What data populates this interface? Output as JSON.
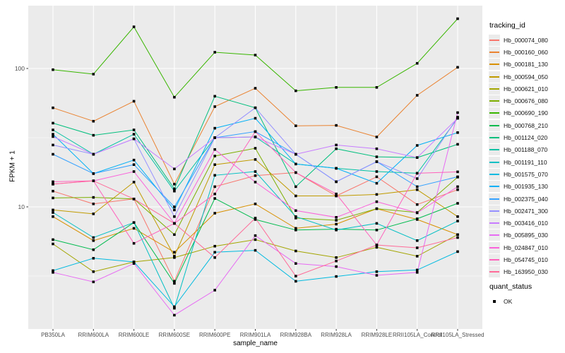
{
  "figure": {
    "ylabel": "FPKM + 1",
    "xlabel": "sample_name",
    "legend_title": "tracking_id",
    "legend2_title": "quant_status",
    "legend2_items": [
      {
        "label": "OK",
        "marker": "black-square"
      }
    ]
  },
  "chart_data": {
    "type": "line",
    "title": "",
    "xlabel": "sample_name",
    "ylabel": "FPKM + 1",
    "yscale": "log10",
    "grid": true,
    "legend_position": "right",
    "marker": "black-square",
    "yticks": [
      10,
      100
    ],
    "ytick_labels": [
      "10",
      "100"
    ],
    "minor_ticks": [
      3.162,
      31.62,
      316.2
    ],
    "ylim": [
      1.35,
      290
    ],
    "x_categories": [
      "PB350LA",
      "RRIM600LA",
      "RRIM600LE",
      "RRIM600SE",
      "RRIM600PE",
      "RRIM901LA",
      "RRIM928BA",
      "RRIM928LA",
      "RRIM928LE",
      "RRII105LA_Control",
      "RRII105LA_Stressed"
    ],
    "series": [
      {
        "name": "Hb_000074_080",
        "color": "#F8766D",
        "values": [
          13.0,
          10.5,
          11.4,
          2.9,
          14.0,
          16.8,
          17.7,
          12.0,
          16.5,
          10.4,
          13.3
        ]
      },
      {
        "name": "Hb_000160_060",
        "color": "#EA8331",
        "values": [
          52,
          41.6,
          58,
          14.6,
          53,
          72,
          38.5,
          38.8,
          32,
          64,
          102
        ]
      },
      {
        "name": "Hb_000181_130",
        "color": "#D89000",
        "values": [
          8.5,
          5.7,
          7.0,
          4.7,
          9.0,
          10.5,
          7.0,
          7.5,
          9.7,
          8.1,
          6.3
        ]
      },
      {
        "name": "Hb_000594_050",
        "color": "#C09B00",
        "values": [
          9.5,
          8.9,
          15.1,
          4.4,
          20.2,
          22.0,
          12.0,
          12.0,
          12.3,
          13.3,
          8.5
        ]
      },
      {
        "name": "Hb_000621_010",
        "color": "#A3A500",
        "values": [
          5.4,
          3.4,
          4.0,
          4.3,
          5.2,
          5.8,
          4.8,
          4.3,
          5.1,
          4.4,
          6.3
        ]
      },
      {
        "name": "Hb_000676_080",
        "color": "#7CAE00",
        "values": [
          11.6,
          11.7,
          11.4,
          6.3,
          23.3,
          26.5,
          8.3,
          8.0,
          9.7,
          9.1,
          16.4
        ]
      },
      {
        "name": "Hb_000690_190",
        "color": "#39B600",
        "values": [
          98,
          91,
          200,
          62,
          131,
          125,
          69,
          73,
          73,
          109,
          229
        ]
      },
      {
        "name": "Hb_000768_210",
        "color": "#00BB4E",
        "values": [
          5.8,
          4.9,
          7.7,
          2.8,
          11.5,
          8.1,
          6.8,
          6.9,
          6.8,
          8.2,
          10.6
        ]
      },
      {
        "name": "Hb_001124_020",
        "color": "#00BF7D",
        "values": [
          40.3,
          32.9,
          36.0,
          13.5,
          63,
          52,
          14.0,
          26.3,
          23.0,
          22.7,
          28.3
        ]
      },
      {
        "name": "Hb_001188_070",
        "color": "#00C1A3",
        "values": [
          36.0,
          24.0,
          33.5,
          13.0,
          31.6,
          32.0,
          20.4,
          19.0,
          18.0,
          17.5,
          43.7
        ]
      },
      {
        "name": "Hb_001191_110",
        "color": "#00BFC4",
        "values": [
          9.1,
          6.0,
          7.7,
          1.85,
          16.9,
          18.0,
          8.5,
          6.8,
          7.6,
          5.7,
          7.9
        ]
      },
      {
        "name": "Hb_001575_070",
        "color": "#00BAE0",
        "values": [
          3.46,
          4.25,
          4.0,
          1.9,
          4.7,
          4.85,
          2.9,
          3.14,
          3.4,
          3.5,
          4.75
        ]
      },
      {
        "name": "Hb_001935_130",
        "color": "#00B0F6",
        "values": [
          33.5,
          17.4,
          21.8,
          9.5,
          37,
          43.7,
          20.4,
          19.0,
          14.8,
          27.8,
          34.4
        ]
      },
      {
        "name": "Hb_002375_040",
        "color": "#35A2FF",
        "values": [
          24.0,
          17.4,
          20.2,
          10.0,
          31.6,
          35.0,
          24.0,
          15.2,
          21.2,
          14.0,
          16.5
        ]
      },
      {
        "name": "Hb_002471_300",
        "color": "#9590FF",
        "values": [
          28.0,
          24.0,
          31.0,
          8.5,
          31.6,
          52.0,
          24.0,
          15.2,
          21.2,
          16.0,
          44.5
        ]
      },
      {
        "name": "Hb_003416_010",
        "color": "#C77CFF",
        "values": [
          32.2,
          24.0,
          31.0,
          18.8,
          31.6,
          32.0,
          24.0,
          28.0,
          26.3,
          22.7,
          43.7
        ]
      },
      {
        "name": "Hb_005895_030",
        "color": "#E76BF3",
        "values": [
          3.36,
          2.87,
          3.9,
          1.65,
          2.5,
          6.2,
          3.9,
          3.7,
          3.2,
          3.36,
          48.0
        ]
      },
      {
        "name": "Hb_024847_010",
        "color": "#FA62DB",
        "values": [
          14.6,
          15.4,
          18.0,
          7.6,
          26.0,
          15.1,
          9.4,
          8.4,
          10.9,
          9.05,
          14.0
        ]
      },
      {
        "name": "Hb_054745_010",
        "color": "#FF62BC",
        "values": [
          15.2,
          15.4,
          5.45,
          7.6,
          12.4,
          35.0,
          17.7,
          12.4,
          5.3,
          17.5,
          17.9
        ]
      },
      {
        "name": "Hb_163950_030",
        "color": "#FF6A98",
        "values": [
          14.6,
          15.4,
          11.4,
          7.6,
          4.3,
          8.3,
          3.16,
          4.06,
          5.3,
          5.06,
          6.0
        ]
      }
    ]
  }
}
